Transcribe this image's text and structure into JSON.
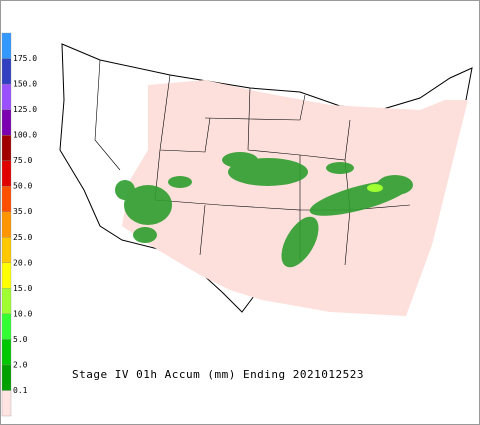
{
  "title": "Stage IV 01h Accum (mm) Ending 2021012523",
  "legend": {
    "labels": [
      "0.1",
      "2.0",
      "5.0",
      "10.0",
      "15.0",
      "20.0",
      "25.0",
      "35.0",
      "50.0",
      "75.0",
      "100.0",
      "125.0",
      "150.0",
      "175.0"
    ],
    "colors": [
      "#ffe4e1",
      "#00a000",
      "#00c800",
      "#33ff33",
      "#a0ff30",
      "#ffff00",
      "#ffc800",
      "#ff9600",
      "#ff5000",
      "#e00000",
      "#a00000",
      "#7a00b0",
      "#9a50ff",
      "#3040c0",
      "#3399ff"
    ]
  }
}
